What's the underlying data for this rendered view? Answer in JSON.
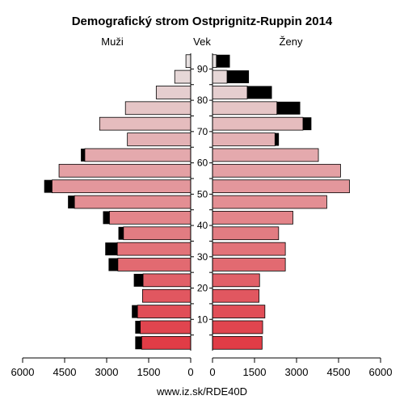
{
  "chart_data": {
    "type": "bar",
    "title": "Demografický strom Ostprignitz-Ruppin 2014",
    "left_label": "Muži",
    "center_label": "Vek",
    "right_label": "Ženy",
    "source": "www.iz.sk/RDE40D",
    "xlim": [
      0,
      6000
    ],
    "x_ticks": [
      0,
      1500,
      3000,
      4500,
      6000
    ],
    "age_ticks": [
      10,
      20,
      30,
      40,
      50,
      60,
      70,
      80,
      90
    ],
    "age_groups": [
      "0-4",
      "5-9",
      "10-14",
      "15-19",
      "20-24",
      "25-29",
      "30-34",
      "35-39",
      "40-44",
      "45-49",
      "50-54",
      "55-59",
      "60-64",
      "65-69",
      "70-74",
      "75-79",
      "80-84",
      "85-89",
      "90-94"
    ],
    "men_base": [
      1750,
      1800,
      1900,
      1720,
      1700,
      2600,
      2620,
      2400,
      2900,
      4150,
      4950,
      4700,
      3780,
      2260,
      3250,
      2330,
      1230,
      570,
      170
    ],
    "men_excess": [
      230,
      180,
      200,
      0,
      330,
      330,
      430,
      180,
      230,
      230,
      280,
      0,
      140,
      0,
      0,
      0,
      0,
      0,
      0
    ],
    "women_base": [
      1770,
      1790,
      1870,
      1660,
      1680,
      2600,
      2600,
      2360,
      2870,
      4080,
      4890,
      4570,
      3780,
      2230,
      3230,
      2300,
      1240,
      520,
      140
    ],
    "women_excess": [
      0,
      0,
      0,
      0,
      0,
      0,
      0,
      0,
      0,
      0,
      0,
      0,
      0,
      140,
      300,
      830,
      880,
      780,
      480
    ],
    "colors": {
      "low": "#e03c46",
      "high": "#e6e0e0",
      "excess": "#000000",
      "outline": "#000000"
    },
    "grid": false
  }
}
